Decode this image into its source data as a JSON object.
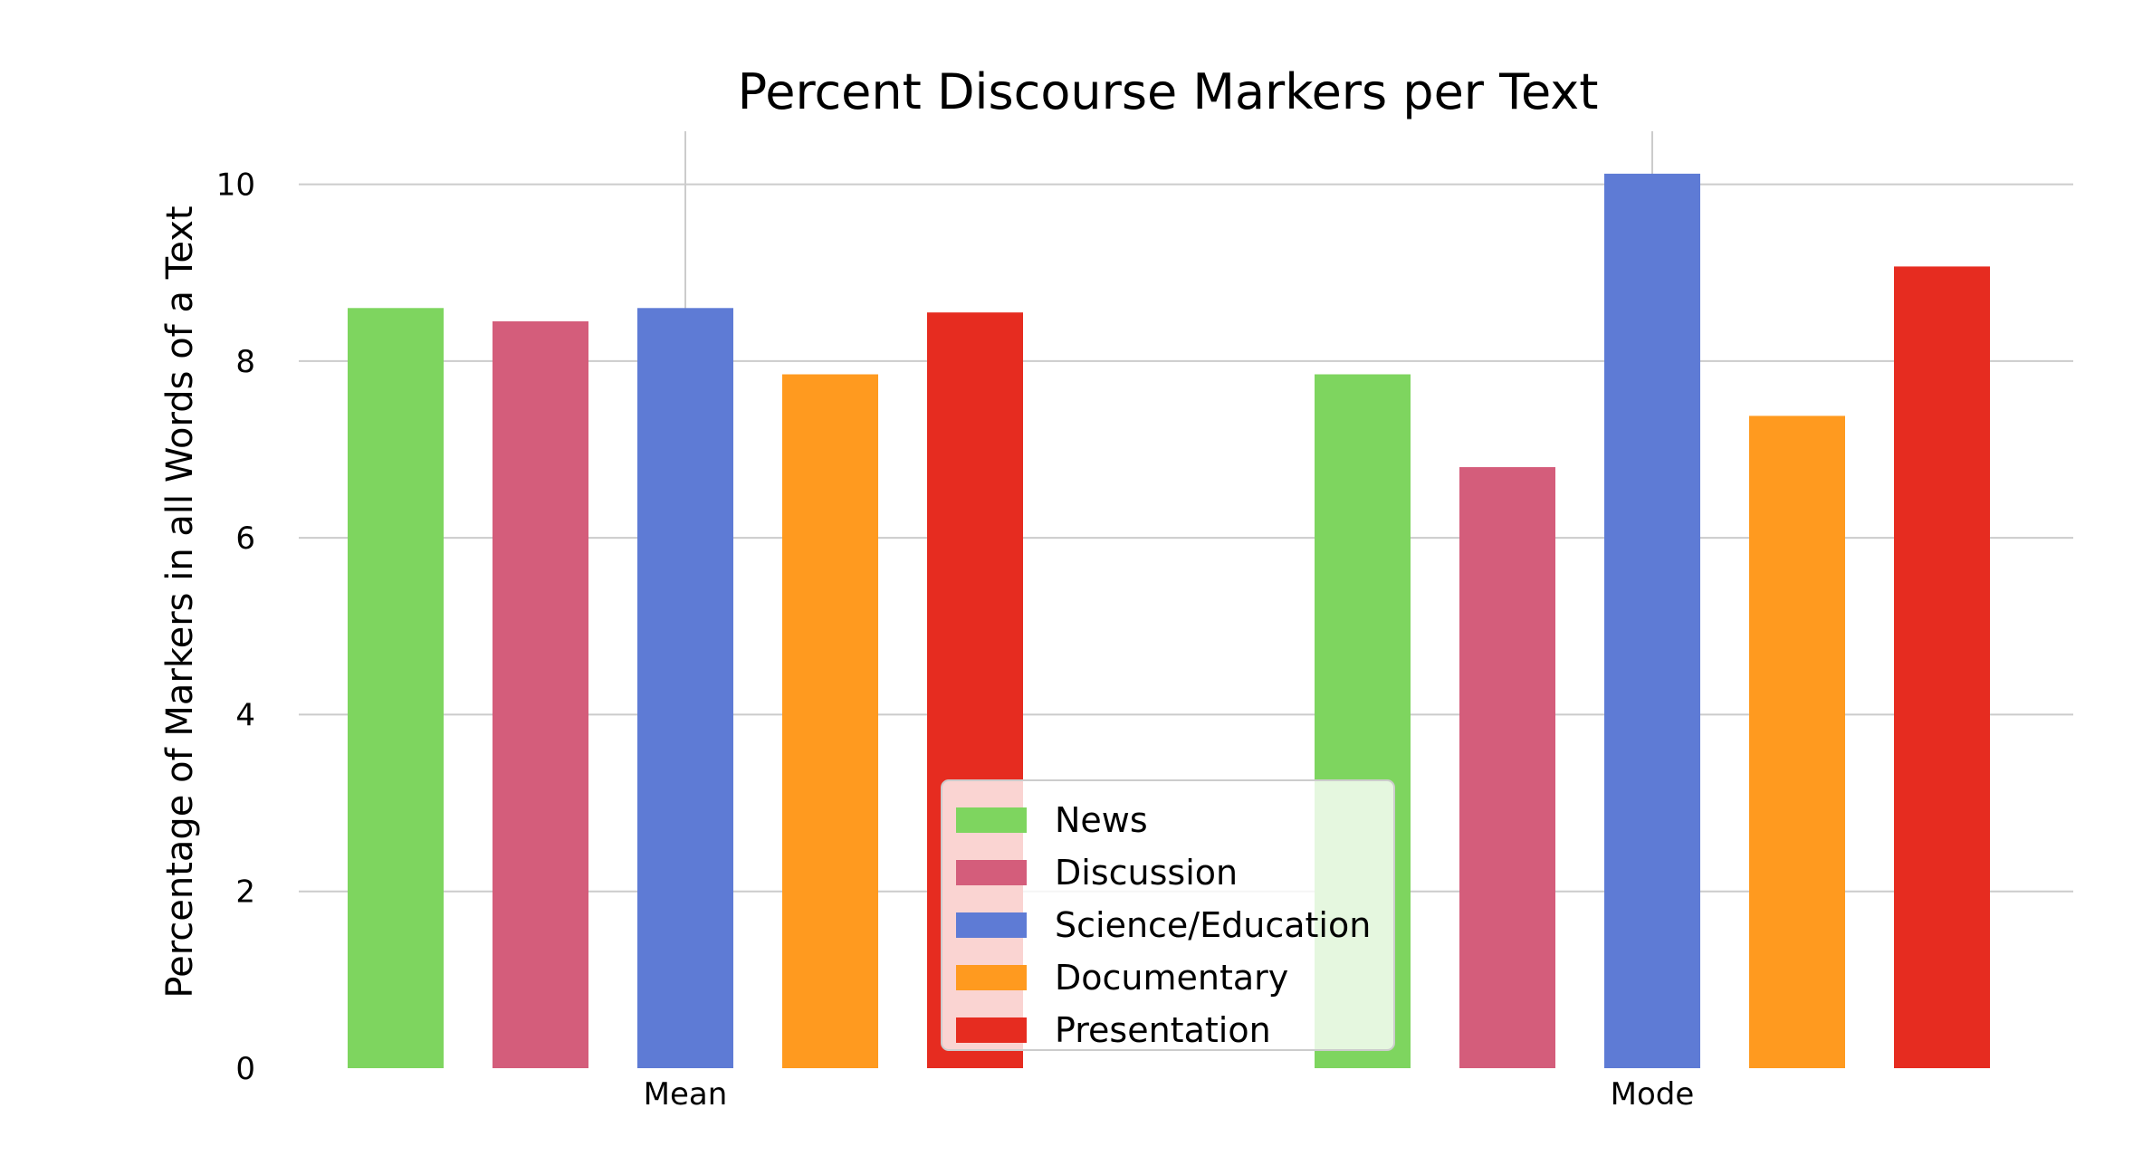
{
  "chart_data": {
    "type": "bar",
    "title": "Percent Discourse Markers per Text",
    "xlabel": "",
    "ylabel": "Percentage of Markers in all Words of a Text",
    "categories": [
      "Mean",
      "Mode"
    ],
    "ylim": [
      0,
      10.6
    ],
    "yticks": [
      "0",
      "2",
      "4",
      "6",
      "8",
      "10"
    ],
    "grid": true,
    "legend_position": "lower-center",
    "series": [
      {
        "name": "News",
        "color": "#7ED55F",
        "values": [
          8.6,
          7.85
        ]
      },
      {
        "name": "Discussion",
        "color": "#D45D7B",
        "values": [
          8.45,
          6.8
        ]
      },
      {
        "name": "Science/Education",
        "color": "#5E7BD5",
        "values": [
          8.6,
          10.12
        ]
      },
      {
        "name": "Documentary",
        "color": "#FF9A1F",
        "values": [
          7.85,
          7.38
        ]
      },
      {
        "name": "Presentation",
        "color": "#E62C20",
        "values": [
          8.55,
          9.07
        ]
      }
    ]
  }
}
